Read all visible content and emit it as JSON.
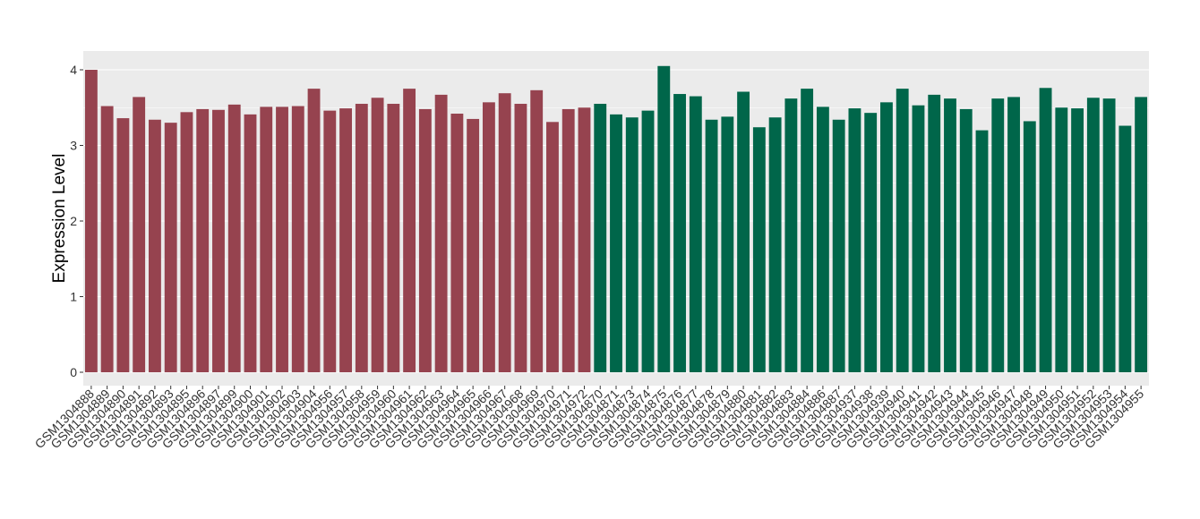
{
  "chart_data": {
    "type": "bar",
    "title": "",
    "xlabel": "",
    "ylabel": "Expression Level",
    "ylim": [
      0,
      4.1
    ],
    "yticks": [
      0,
      1,
      2,
      3,
      4
    ],
    "grid": true,
    "legend": "none",
    "categories": [
      "GSM1304888",
      "GSM1304889",
      "GSM1304890",
      "GSM1304891",
      "GSM1304892",
      "GSM1304893",
      "GSM1304895",
      "GSM1304896",
      "GSM1304897",
      "GSM1304899",
      "GSM1304900",
      "GSM1304901",
      "GSM1304902",
      "GSM1304903",
      "GSM1304904",
      "GSM1304956",
      "GSM1304957",
      "GSM1304958",
      "GSM1304959",
      "GSM1304960",
      "GSM1304961",
      "GSM1304962",
      "GSM1304963",
      "GSM1304964",
      "GSM1304965",
      "GSM1304966",
      "GSM1304967",
      "GSM1304968",
      "GSM1304969",
      "GSM1304970",
      "GSM1304971",
      "GSM1304972",
      "GSM1304870",
      "GSM1304871",
      "GSM1304873",
      "GSM1304874",
      "GSM1304875",
      "GSM1304876",
      "GSM1304877",
      "GSM1304878",
      "GSM1304879",
      "GSM1304880",
      "GSM1304881",
      "GSM1304882",
      "GSM1304883",
      "GSM1304884",
      "GSM1304886",
      "GSM1304887",
      "GSM1304937",
      "GSM1304938",
      "GSM1304939",
      "GSM1304940",
      "GSM1304941",
      "GSM1304942",
      "GSM1304943",
      "GSM1304944",
      "GSM1304945",
      "GSM1304946",
      "GSM1304947",
      "GSM1304948",
      "GSM1304949",
      "GSM1304950",
      "GSM1304951",
      "GSM1304952",
      "GSM1304953",
      "GSM1304954",
      "GSM1304955"
    ],
    "values": [
      4.0,
      3.52,
      3.36,
      3.64,
      3.34,
      3.3,
      3.44,
      3.48,
      3.47,
      3.54,
      3.41,
      3.51,
      3.51,
      3.52,
      3.75,
      3.46,
      3.49,
      3.55,
      3.63,
      3.55,
      3.75,
      3.48,
      3.67,
      3.42,
      3.35,
      3.57,
      3.69,
      3.55,
      3.73,
      3.31,
      3.48,
      3.5,
      3.55,
      3.41,
      3.37,
      3.46,
      4.05,
      3.68,
      3.65,
      3.34,
      3.38,
      3.71,
      3.24,
      3.37,
      3.62,
      3.75,
      3.51,
      3.34,
      3.49,
      3.43,
      3.57,
      3.75,
      3.53,
      3.67,
      3.62,
      3.48,
      3.2,
      3.62,
      3.64,
      3.32,
      3.76,
      3.5,
      3.49,
      3.63,
      3.62,
      3.26,
      3.64
    ],
    "groups": [
      {
        "count": 32,
        "color": "#96434f"
      },
      {
        "count": 35,
        "color": "#00664a"
      }
    ],
    "panel_color": "#ebebeb",
    "grid_color": "#ffffff"
  }
}
